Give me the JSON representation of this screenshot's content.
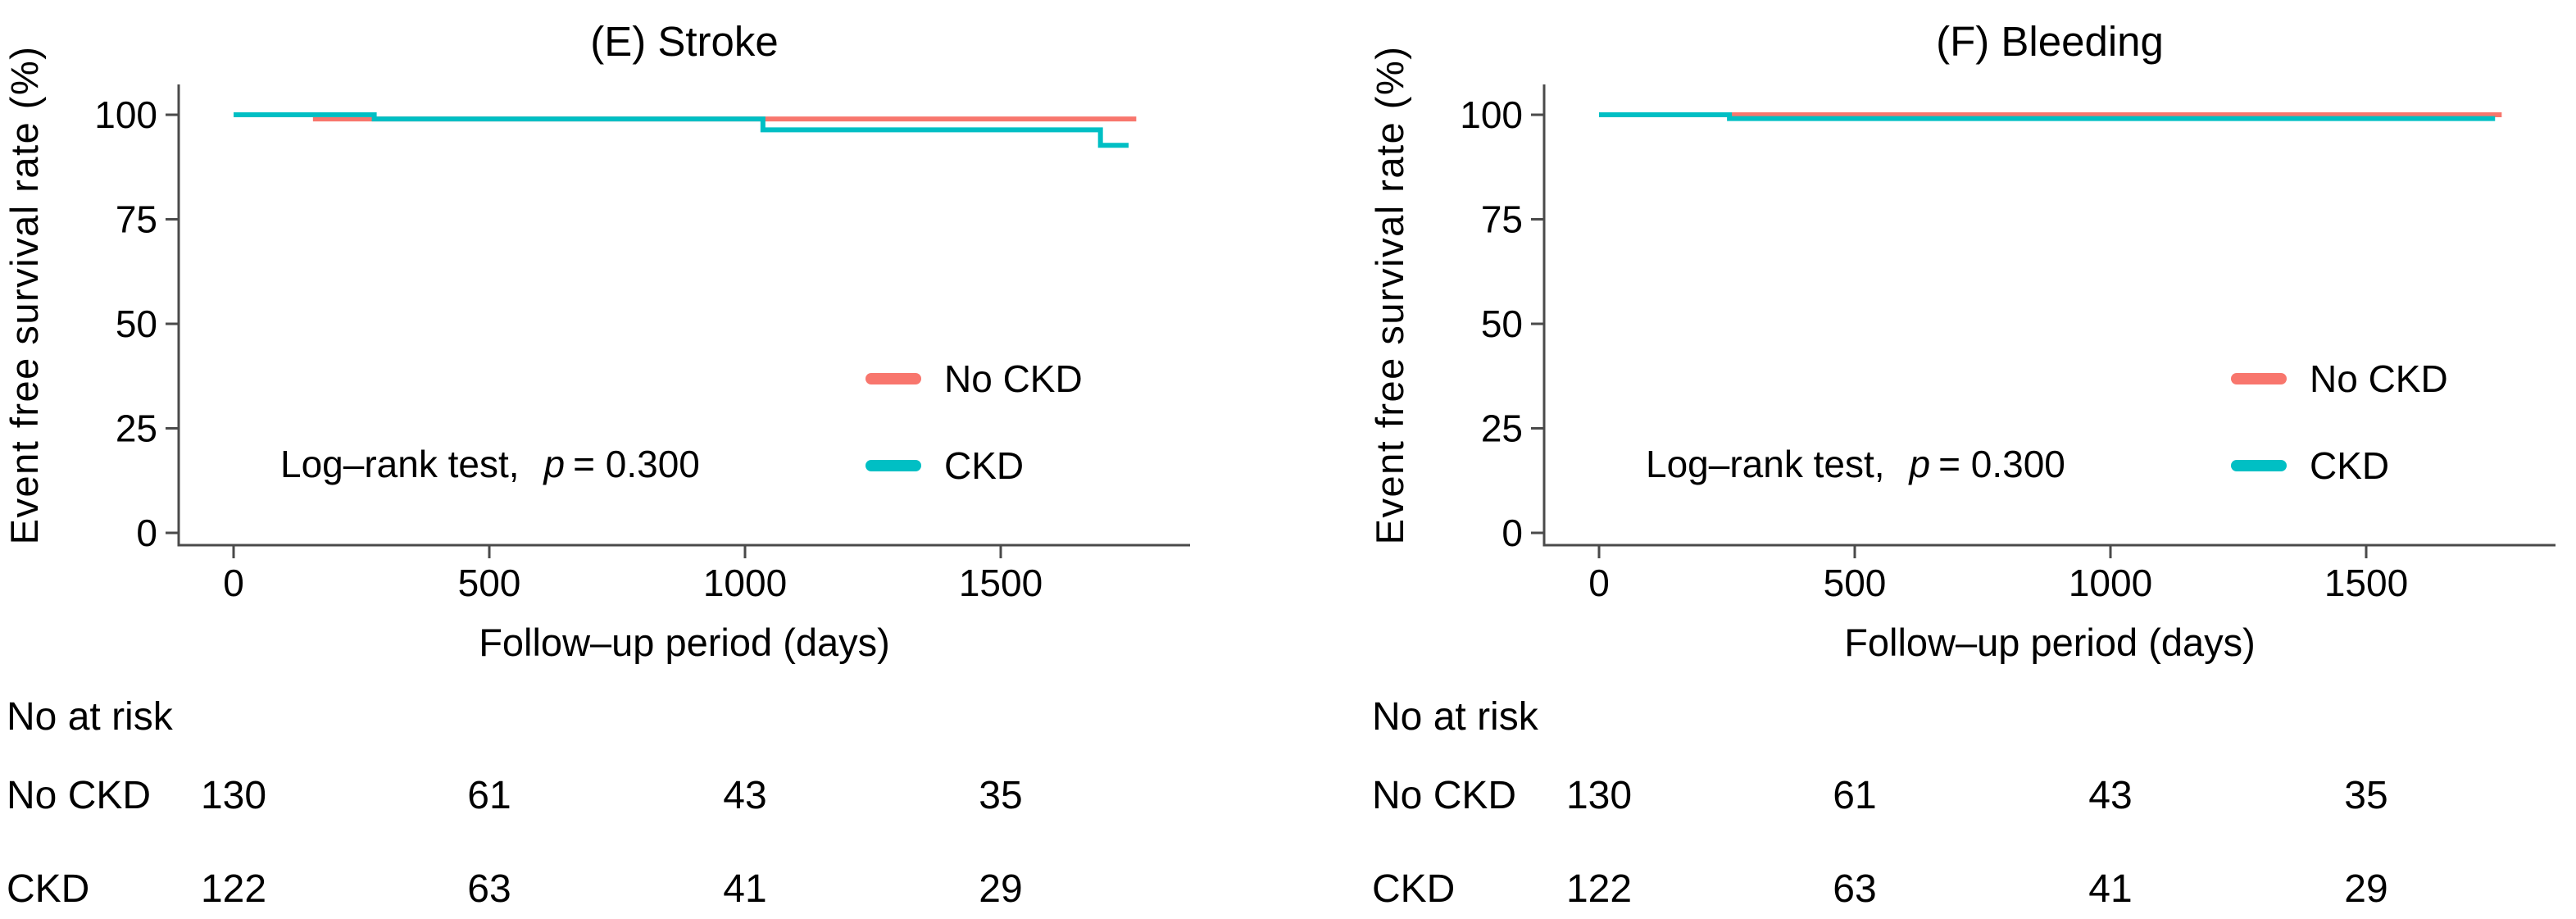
{
  "figure": {
    "background": "#ffffff",
    "axis_color": "#4a4a4a",
    "text_color": "#000000",
    "series_colors": {
      "no_ckd": "#F8766D",
      "ckd": "#00BFC4"
    }
  },
  "chart_data": [
    {
      "type": "line",
      "subtype": "kaplan-meier-step",
      "title": "(E) Stroke",
      "xlabel": "Follow–up period (days)",
      "ylabel": "Event free survival rate (%)",
      "xticks": [
        0,
        500,
        1000,
        1500
      ],
      "yticks": [
        0,
        25,
        50,
        75,
        100
      ],
      "xlim": [
        0,
        1870
      ],
      "ylim": [
        0,
        105
      ],
      "grid": false,
      "legend_position": "right-center",
      "annotation": {
        "text": "Log–rank test,",
        "p_symbol": "p",
        "p_value": "= 0.300"
      },
      "panel_offset_x": 0,
      "series": [
        {
          "name": "No CKD",
          "color_key": "no_ckd",
          "color": "#F8766D",
          "end_day": 1765,
          "steps": [
            [
              0,
              100
            ],
            [
              160,
              99.0
            ]
          ]
        },
        {
          "name": "CKD",
          "color_key": "ckd",
          "color": "#00BFC4",
          "end_day": 1750,
          "steps": [
            [
              0,
              100
            ],
            [
              275,
              99.0
            ],
            [
              1035,
              96.4
            ],
            [
              1695,
              92.7
            ]
          ]
        }
      ],
      "risk_table": {
        "header": "No at risk",
        "columns_days": [
          0,
          500,
          1000,
          1500
        ],
        "rows": [
          {
            "label": "No CKD",
            "values": [
              "130",
              "61",
              "43",
              "35"
            ]
          },
          {
            "label": "CKD",
            "values": [
              "122",
              "63",
              "41",
              "29"
            ]
          }
        ]
      }
    },
    {
      "type": "line",
      "subtype": "kaplan-meier-step",
      "title": "(F) Bleeding",
      "xlabel": "Follow–up period (days)",
      "ylabel": "Event free survival rate (%)",
      "xticks": [
        0,
        500,
        1000,
        1500
      ],
      "yticks": [
        0,
        25,
        50,
        75,
        100
      ],
      "xlim": [
        0,
        1870
      ],
      "ylim": [
        0,
        105
      ],
      "grid": false,
      "legend_position": "right-center",
      "annotation": {
        "text": "Log–rank test,",
        "p_symbol": "p",
        "p_value": "= 0.300"
      },
      "panel_offset_x": 95,
      "series": [
        {
          "name": "No CKD",
          "color_key": "no_ckd",
          "color": "#F8766D",
          "end_day": 1765,
          "steps": [
            [
              0,
              100
            ]
          ]
        },
        {
          "name": "CKD",
          "color_key": "ckd",
          "color": "#00BFC4",
          "end_day": 1752,
          "steps": [
            [
              0,
              100
            ],
            [
              255,
              99.1
            ]
          ]
        }
      ],
      "risk_table": {
        "header": "No at risk",
        "columns_days": [
          0,
          500,
          1000,
          1500
        ],
        "rows": [
          {
            "label": "No CKD",
            "values": [
              "130",
              "61",
              "43",
              "35"
            ]
          },
          {
            "label": "CKD",
            "values": [
              "122",
              "63",
              "41",
              "29"
            ]
          }
        ]
      }
    }
  ]
}
